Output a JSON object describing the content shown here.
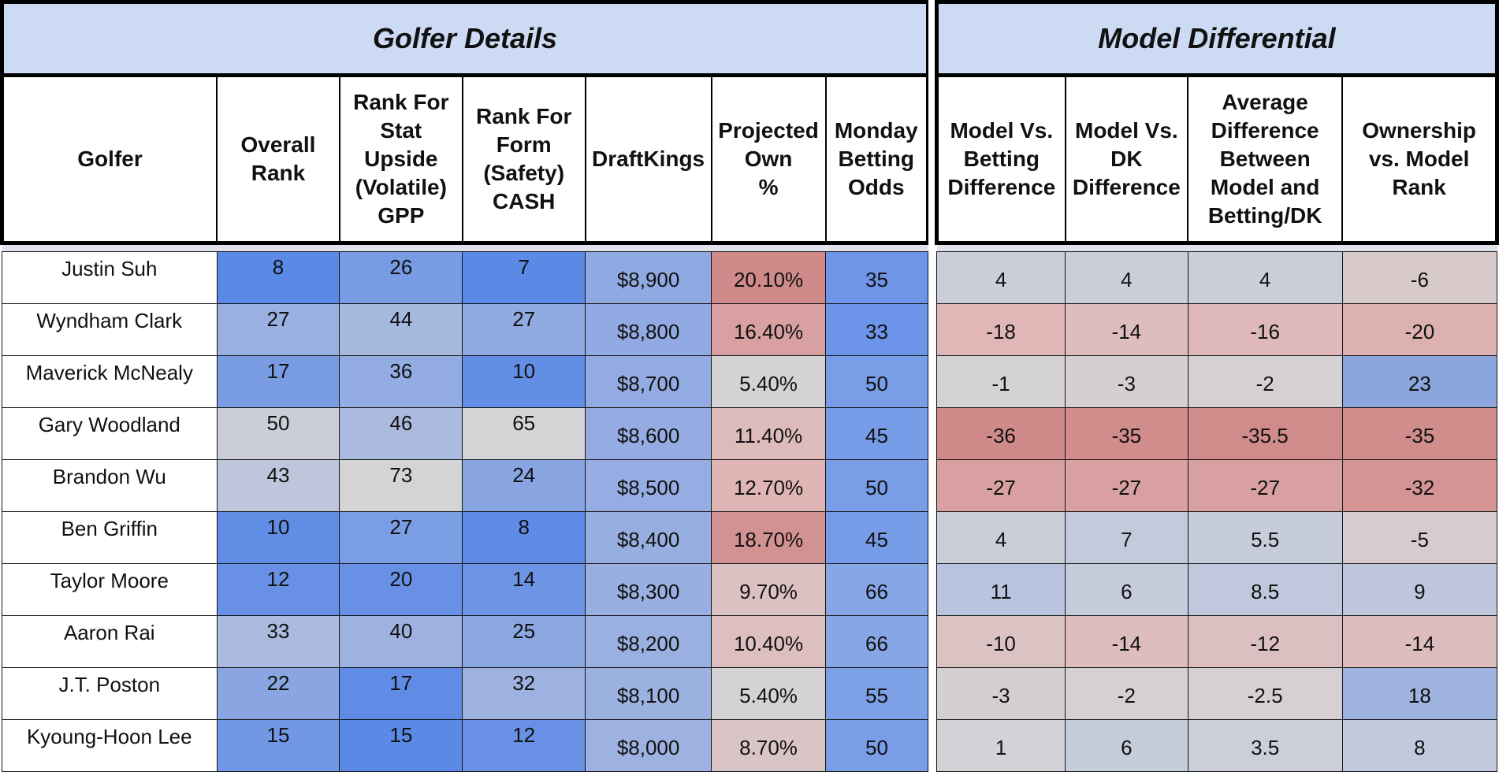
{
  "left": {
    "title": "Golfer Details",
    "headers": [
      "Golfer",
      "Overall\nRank",
      "Rank For\nStat\nUpside\n(Volatile)\nGPP",
      "Rank For\nForm\n(Safety)\nCASH",
      "DraftKings",
      "Projected\nOwn\n%",
      "Monday\nBetting\nOdds"
    ]
  },
  "right": {
    "title": "Model Differential",
    "headers": [
      "Model Vs.\nBetting\nDifference",
      "Model Vs.\nDK\nDifference",
      "Average\nDifference\nBetween\nModel and\nBetting/DK",
      "Ownership\nvs. Model\nRank"
    ]
  },
  "rows": [
    {
      "golfer": "Justin Suh",
      "overall": "8",
      "gpp": "26",
      "cash": "7",
      "dk": "$8,900",
      "own": "20.10%",
      "odds": "35",
      "mvb": "4",
      "mvdk": "4",
      "avg": "4",
      "ovm": "-6"
    },
    {
      "golfer": "Wyndham Clark",
      "overall": "27",
      "gpp": "44",
      "cash": "27",
      "dk": "$8,800",
      "own": "16.40%",
      "odds": "33",
      "mvb": "-18",
      "mvdk": "-14",
      "avg": "-16",
      "ovm": "-20"
    },
    {
      "golfer": "Maverick McNealy",
      "overall": "17",
      "gpp": "36",
      "cash": "10",
      "dk": "$8,700",
      "own": "5.40%",
      "odds": "50",
      "mvb": "-1",
      "mvdk": "-3",
      "avg": "-2",
      "ovm": "23"
    },
    {
      "golfer": "Gary Woodland",
      "overall": "50",
      "gpp": "46",
      "cash": "65",
      "dk": "$8,600",
      "own": "11.40%",
      "odds": "45",
      "mvb": "-36",
      "mvdk": "-35",
      "avg": "-35.5",
      "ovm": "-35"
    },
    {
      "golfer": "Brandon Wu",
      "overall": "43",
      "gpp": "73",
      "cash": "24",
      "dk": "$8,500",
      "own": "12.70%",
      "odds": "50",
      "mvb": "-27",
      "mvdk": "-27",
      "avg": "-27",
      "ovm": "-32"
    },
    {
      "golfer": "Ben Griffin",
      "overall": "10",
      "gpp": "27",
      "cash": "8",
      "dk": "$8,400",
      "own": "18.70%",
      "odds": "45",
      "mvb": "4",
      "mvdk": "7",
      "avg": "5.5",
      "ovm": "-5"
    },
    {
      "golfer": "Taylor Moore",
      "overall": "12",
      "gpp": "20",
      "cash": "14",
      "dk": "$8,300",
      "own": "9.70%",
      "odds": "66",
      "mvb": "11",
      "mvdk": "6",
      "avg": "8.5",
      "ovm": "9"
    },
    {
      "golfer": "Aaron Rai",
      "overall": "33",
      "gpp": "40",
      "cash": "25",
      "dk": "$8,200",
      "own": "10.40%",
      "odds": "66",
      "mvb": "-10",
      "mvdk": "-14",
      "avg": "-12",
      "ovm": "-14"
    },
    {
      "golfer": "J.T. Poston",
      "overall": "22",
      "gpp": "17",
      "cash": "32",
      "dk": "$8,100",
      "own": "5.40%",
      "odds": "55",
      "mvb": "-3",
      "mvdk": "-2",
      "avg": "-2.5",
      "ovm": "18"
    },
    {
      "golfer": "Kyoung-Hoon Lee",
      "overall": "15",
      "gpp": "15",
      "cash": "12",
      "dk": "$8,000",
      "own": "8.70%",
      "odds": "50",
      "mvb": "1",
      "mvdk": "6",
      "avg": "3.5",
      "ovm": "8"
    }
  ],
  "colors": {
    "strong_blue": "#5b89e6",
    "light_blue": "#a8b9e0",
    "neutral": "#d4d4d6",
    "light_red": "#e0b6b6",
    "strong_red": "#d08a8a",
    "header_bg": "#ccdaf3"
  }
}
